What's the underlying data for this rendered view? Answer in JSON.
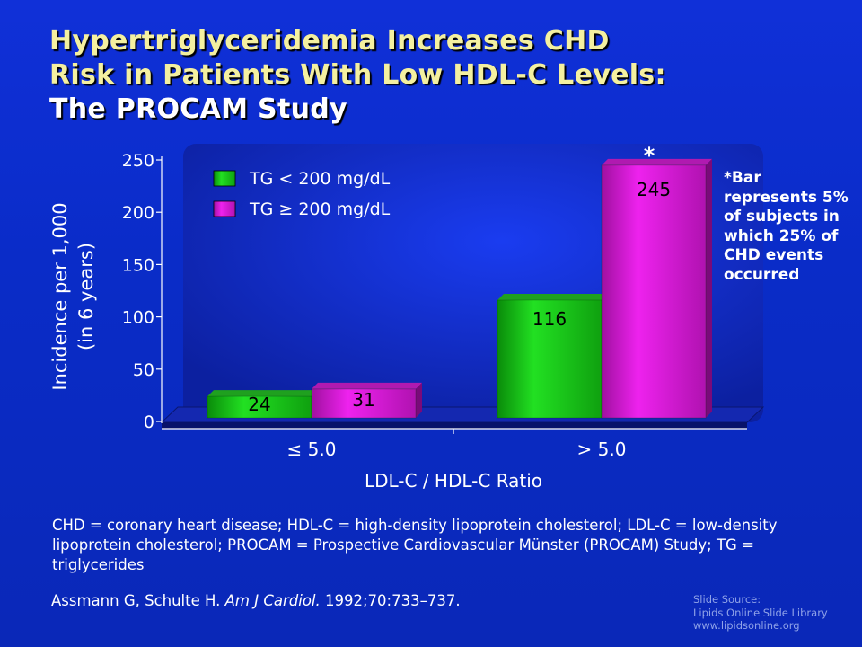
{
  "slide": {
    "title_line1": "Hypertriglyceridemia Increases CHD",
    "title_line2": "Risk in Patients With Low HDL-C Levels:",
    "title_line3": "The PROCAM Study",
    "note": "*Bar represents 5% of subjects in which 25% of CHD events occurred",
    "abbreviations": "CHD = coronary heart disease; HDL-C = high-density lipoprotein cholesterol; LDL-C = low-density lipoprotein cholesterol; PROCAM = Prospective Cardiovascular Münster (PROCAM) Study; TG = triglycerides",
    "citation_authors": "Assmann G, Schulte H.",
    "citation_journal": "Am J Cardiol.",
    "citation_details": "1992;70:733–737.",
    "source_line1": "Slide Source:",
    "source_line2": "Lipids Online Slide Library",
    "source_line3": "www.lipidsonline.org"
  },
  "chart_data": {
    "type": "bar",
    "categories": [
      "≤ 5.0",
      "> 5.0"
    ],
    "series": [
      {
        "name": "TG < 200 mg/dL",
        "values": [
          24,
          116
        ],
        "color": "#19c419"
      },
      {
        "name": "TG ≥ 200 mg/dL",
        "values": [
          31,
          245
        ],
        "color": "#d21ad2"
      }
    ],
    "asterisk": "*",
    "xlabel": "LDL-C / HDL-C Ratio",
    "ylabel_line1": "Incidence per 1,000",
    "ylabel_line2": "(in 6 years)",
    "ylim": [
      0,
      250
    ],
    "yticks": [
      0,
      50,
      100,
      150,
      200,
      250
    ],
    "legend_position": "top-left",
    "colors": {
      "background": "#0a2cc8",
      "plot_floor": "#1a2aa8",
      "text": "#ffffff",
      "title": "#f4f0a0"
    }
  }
}
